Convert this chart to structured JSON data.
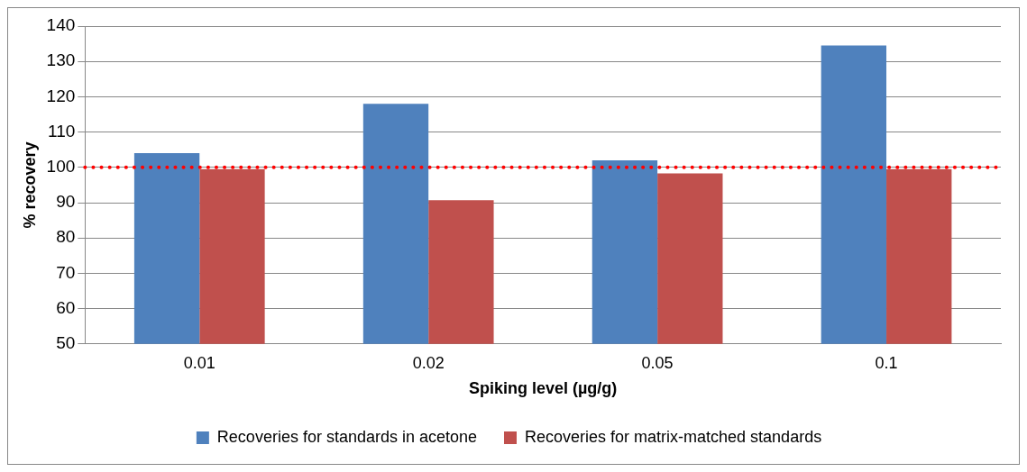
{
  "chart_data": {
    "type": "bar",
    "xlabel": "Spiking level (µg/g)",
    "ylabel": "% recovery",
    "categories": [
      "0.01",
      "0.02",
      "0.05",
      "0.1"
    ],
    "series": [
      {
        "name": "Recoveries for standards in acetone",
        "color": "#4f81bd",
        "values": [
          104,
          118,
          102,
          134.5
        ]
      },
      {
        "name": "Recoveries for matrix-matched standards",
        "color": "#c0504d",
        "values": [
          99.5,
          90.7,
          98.3,
          99.5
        ]
      }
    ],
    "ylim": [
      50,
      140
    ],
    "yticks": [
      50,
      60,
      70,
      80,
      90,
      100,
      110,
      120,
      130,
      140
    ],
    "grid": "y",
    "legend": "bottom",
    "ref_lines": [
      {
        "axis": "y",
        "value": 100,
        "color": "#ff0000",
        "line_style": "dotted"
      }
    ]
  }
}
